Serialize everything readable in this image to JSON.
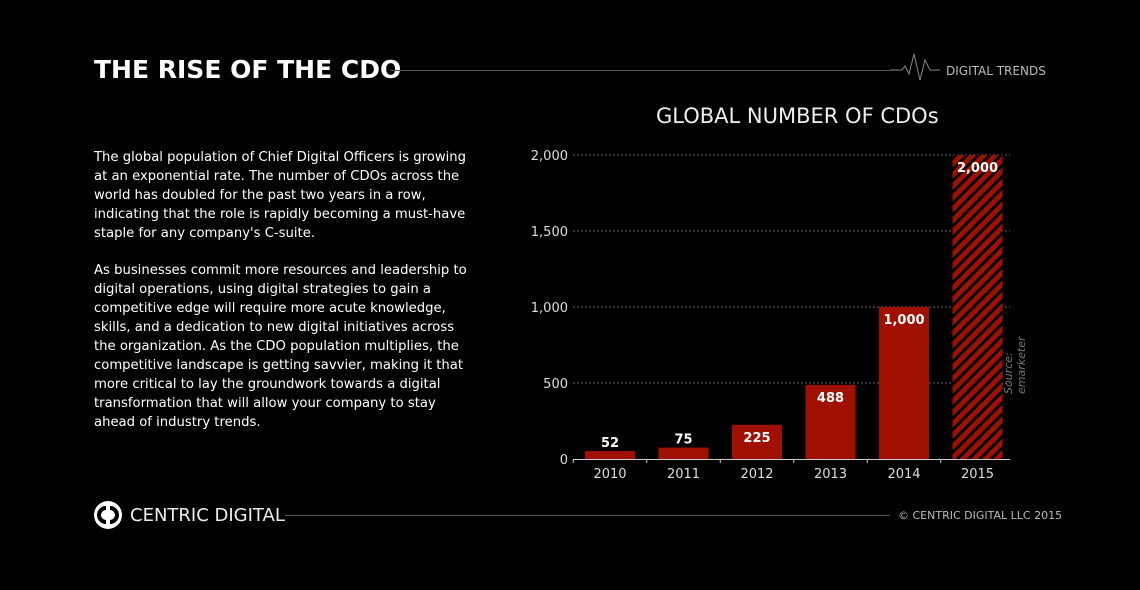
{
  "header": {
    "title": "THE RISE OF THE CDO",
    "section": "DIGITAL TRENDS"
  },
  "body": {
    "paragraphs": [
      "The global population of Chief Digital Officers is growing at an exponential rate. The number of CDOs across the world has doubled for the past two years in a row, indicating that the role is rapidly becoming a must-have staple for any company's C-suite.",
      "As businesses commit more resources and leadership to digital operations, using digital strategies to gain a competitive edge will require more acute knowledge, skills, and a dedication to new digital initiatives across the organization. As the CDO population multiplies, the competitive landscape is getting savvier, making it that more critical to lay the groundwork towards a digital transformation that will allow your company to stay ahead of industry trends."
    ]
  },
  "chart_data": {
    "type": "bar",
    "title": "GLOBAL NUMBER OF CDOs",
    "categories": [
      "2010",
      "2011",
      "2012",
      "2013",
      "2014",
      "2015"
    ],
    "values": [
      52,
      75,
      225,
      488,
      1000,
      2000
    ],
    "data_labels": [
      "52",
      "75",
      "225",
      "488",
      "1,000",
      "2,000"
    ],
    "yticks": [
      0,
      500,
      1000,
      1500,
      2000
    ],
    "ytick_labels": [
      "0",
      "500",
      "1,000",
      "1,500",
      "2,000"
    ],
    "ylim": [
      0,
      2000
    ],
    "grid": "dotted horizontal",
    "hatched_categories": [
      "2015"
    ],
    "source": "Source:  emarketer",
    "colors": {
      "bar": "#a01000",
      "hatch": "#000000"
    }
  },
  "footer": {
    "brand": "CENTRIC DIGITAL",
    "copyright": "© CENTRIC DIGITAL LLC 2015"
  }
}
